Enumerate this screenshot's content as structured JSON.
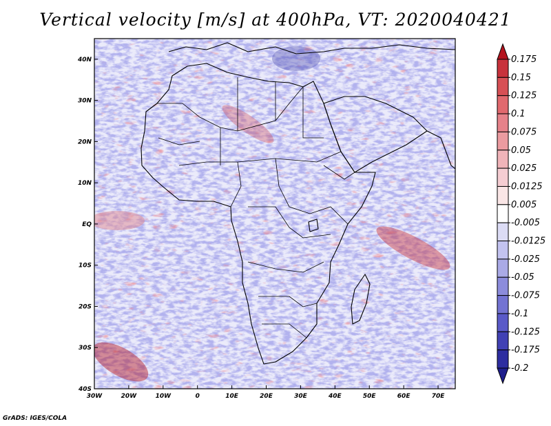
{
  "title": "Vertical velocity [m/s] at 400hPa, VT: 2020040421",
  "credit": "GrADS: IGES/COLA",
  "map": {
    "lon_range": [
      -30,
      75
    ],
    "lat_range": [
      -40,
      45
    ],
    "x_ticks": [
      {
        "value": -30,
        "label": "30W"
      },
      {
        "value": -20,
        "label": "20W"
      },
      {
        "value": -10,
        "label": "10W"
      },
      {
        "value": 0,
        "label": "0"
      },
      {
        "value": 10,
        "label": "10E"
      },
      {
        "value": 20,
        "label": "20E"
      },
      {
        "value": 30,
        "label": "30E"
      },
      {
        "value": 40,
        "label": "40E"
      },
      {
        "value": 50,
        "label": "50E"
      },
      {
        "value": 60,
        "label": "60E"
      },
      {
        "value": 70,
        "label": "70E"
      }
    ],
    "y_ticks": [
      {
        "value": 40,
        "label": "40N"
      },
      {
        "value": 30,
        "label": "30N"
      },
      {
        "value": 20,
        "label": "20N"
      },
      {
        "value": 10,
        "label": "10N"
      },
      {
        "value": 0,
        "label": "EQ"
      },
      {
        "value": -10,
        "label": "10S"
      },
      {
        "value": -20,
        "label": "20S"
      },
      {
        "value": -30,
        "label": "30S"
      },
      {
        "value": -40,
        "label": "40S"
      }
    ]
  },
  "colorbar": {
    "labels": [
      "0.175",
      "0.15",
      "0.125",
      "0.1",
      "0.075",
      "0.05",
      "0.025",
      "0.0125",
      "0.005",
      "-0.005",
      "-0.0125",
      "-0.025",
      "-0.05",
      "-0.075",
      "-0.1",
      "-0.125",
      "-0.175",
      "-0.2"
    ],
    "colors": [
      "#b4141e",
      "#c8323c",
      "#d75055",
      "#e1696e",
      "#e6828a",
      "#eb9ba0",
      "#f0b4b9",
      "#f5cdd2",
      "#fae6e6",
      "#ffffff",
      "#dcdcf5",
      "#c3c3f0",
      "#aaaae6",
      "#8c8cdc",
      "#7373d2",
      "#5a5ac8",
      "#4141b4",
      "#2d2da0",
      "#1e1e8c"
    ]
  },
  "colors": {
    "strong_up": "#b4141e",
    "strong_down": "#1e1e8c",
    "background_blue": "#a0a0e6",
    "background_red": "#eba0a5"
  }
}
